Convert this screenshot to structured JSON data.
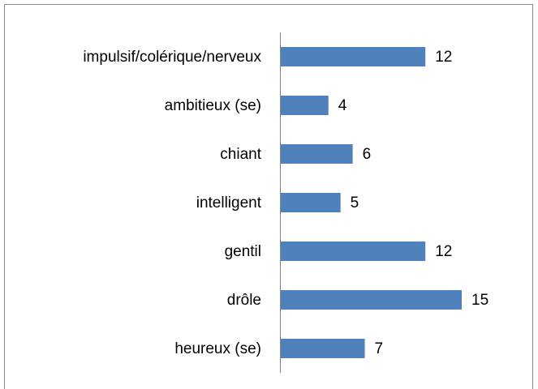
{
  "chart_data": {
    "type": "bar",
    "orientation": "horizontal",
    "categories": [
      "impulsif/colérique/nerveux",
      "ambitieux (se)",
      "chiant",
      "intelligent",
      "gentil",
      "drôle",
      "heureux (se)"
    ],
    "values": [
      12,
      4,
      6,
      5,
      12,
      15,
      7
    ],
    "color": "#4f81bd"
  }
}
